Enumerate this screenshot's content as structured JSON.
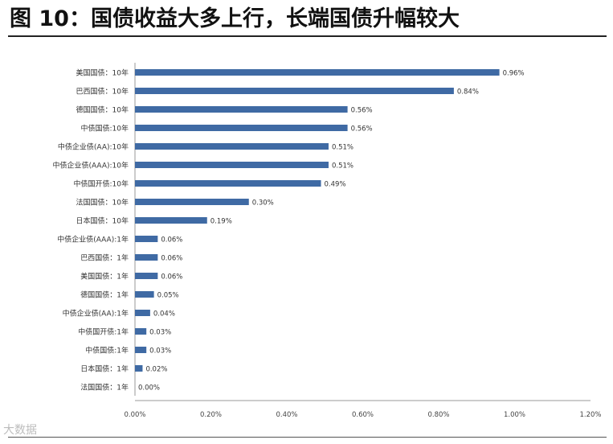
{
  "title": "图 10：国债收益大多上行，长端国债升幅较大",
  "watermark": "大数据",
  "chart_data": {
    "type": "bar",
    "orientation": "horizontal",
    "title": "",
    "xlabel": "",
    "ylabel": "",
    "xlim": [
      0,
      1.2
    ],
    "x_tick_labels": [
      "0.00%",
      "0.20%",
      "0.40%",
      "0.60%",
      "0.80%",
      "1.00%",
      "1.20%"
    ],
    "bar_color": "#3f6aa4",
    "grid": false,
    "categories": [
      "美国国债：10年",
      "巴西国债：10年",
      "德国国债：10年",
      "中债国债:10年",
      "中债企业债(AA):10年",
      "中债企业债(AAA):10年",
      "中债国开债:10年",
      "法国国债：10年",
      "日本国债：10年",
      "中债企业债(AAA):1年",
      "巴西国债：1年",
      "美国国债：1年",
      "德国国债：1年",
      "中债企业债(AA):1年",
      "中债国开债:1年",
      "中债国债:1年",
      "日本国债：1年",
      "法国国债：1年"
    ],
    "values": [
      0.96,
      0.84,
      0.56,
      0.56,
      0.51,
      0.51,
      0.49,
      0.3,
      0.19,
      0.06,
      0.06,
      0.06,
      0.05,
      0.04,
      0.03,
      0.03,
      0.02,
      0.0
    ],
    "value_labels": [
      "0.96%",
      "0.84%",
      "0.56%",
      "0.56%",
      "0.51%",
      "0.51%",
      "0.49%",
      "0.30%",
      "0.19%",
      "0.06%",
      "0.06%",
      "0.06%",
      "0.05%",
      "0.04%",
      "0.03%",
      "0.03%",
      "0.02%",
      "0.00%"
    ]
  }
}
